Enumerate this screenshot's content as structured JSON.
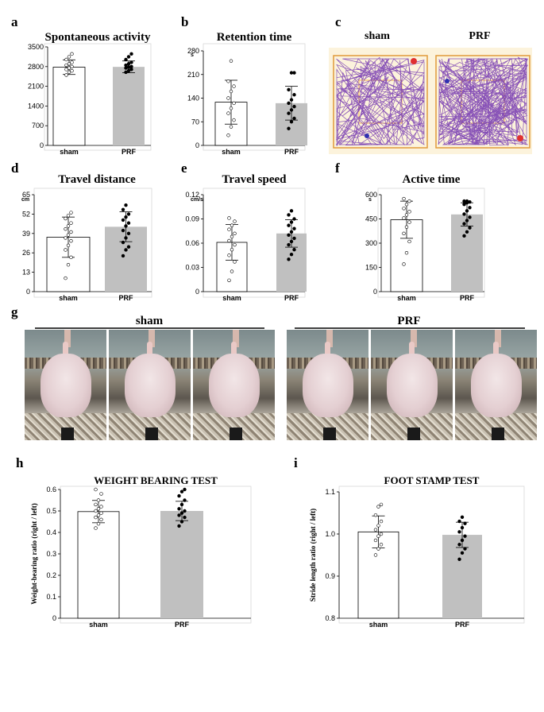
{
  "panel_letters": {
    "a": "a",
    "b": "b",
    "c": "c",
    "d": "d",
    "e": "e",
    "f": "f",
    "g": "g",
    "h": "h",
    "i": "i"
  },
  "colors": {
    "sham_fill": "#ffffff",
    "prf_fill": "#c0c0c0",
    "axis": "#000000",
    "grid_frame": "#d8d8d8",
    "track": "#7a3fb3",
    "arena_bg": "#fcf3dc",
    "arena_border": "#e09a3a"
  },
  "panel_c": {
    "sham_label": "sham",
    "prf_label": "PRF"
  },
  "panel_g": {
    "sham_label": "sham",
    "prf_label": "PRF"
  },
  "chart_data": [
    {
      "id": "a",
      "type": "bar",
      "title": "Spontaneous activity",
      "ylabel": "",
      "unit": "",
      "categories": [
        "sham",
        "PRF"
      ],
      "ylim": [
        0,
        3500
      ],
      "ticks": [
        "0",
        "700",
        "1400",
        "2100",
        "2800",
        "3500"
      ],
      "values": [
        2780,
        2790
      ],
      "errors": [
        260,
        210
      ],
      "points": [
        [
          2500,
          2600,
          2650,
          2700,
          2750,
          2800,
          2850,
          2900,
          2950,
          3050,
          3150,
          3250
        ],
        [
          2600,
          2650,
          2700,
          2750,
          2780,
          2800,
          2850,
          2900,
          2950,
          3050,
          3150,
          3250
        ]
      ]
    },
    {
      "id": "b",
      "type": "bar",
      "title": "Retention time",
      "ylabel": "",
      "unit": "s",
      "categories": [
        "sham",
        "PRF"
      ],
      "ylim": [
        0,
        280
      ],
      "ticks": [
        "0",
        "70",
        "140",
        "210",
        "280"
      ],
      "values": [
        128,
        125
      ],
      "errors": [
        65,
        50
      ],
      "points": [
        [
          30,
          55,
          75,
          95,
          110,
          125,
          140,
          160,
          175,
          190,
          250
        ],
        [
          50,
          70,
          80,
          95,
          105,
          115,
          125,
          135,
          150,
          165,
          215,
          215
        ]
      ]
    },
    {
      "id": "d",
      "type": "bar",
      "title": "Travel distance",
      "ylabel": "",
      "unit": "cm",
      "categories": [
        "sham",
        "PRF"
      ],
      "ylim": [
        0,
        65
      ],
      "ticks": [
        "0",
        "13",
        "26",
        "39",
        "52",
        "65"
      ],
      "values": [
        36.5,
        43.5
      ],
      "errors": [
        13.5,
        10
      ],
      "points": [
        [
          9,
          18,
          23,
          28,
          31,
          34,
          36,
          38,
          40,
          42,
          44,
          46,
          49,
          51,
          53
        ],
        [
          24,
          28,
          30,
          33,
          36,
          39,
          41,
          44,
          46,
          48,
          50,
          52,
          55,
          58
        ]
      ]
    },
    {
      "id": "e",
      "type": "bar",
      "title": "Travel speed",
      "ylabel": "",
      "unit": "cm/s",
      "categories": [
        "sham",
        "PRF"
      ],
      "ylim": [
        0,
        0.12
      ],
      "ticks": [
        "0",
        "0.03",
        "0.06",
        "0.09",
        "0.12"
      ],
      "values": [
        0.061,
        0.072
      ],
      "errors": [
        0.022,
        0.017
      ],
      "points": [
        [
          0.014,
          0.025,
          0.037,
          0.045,
          0.052,
          0.058,
          0.063,
          0.068,
          0.072,
          0.077,
          0.082,
          0.087,
          0.091
        ],
        [
          0.04,
          0.046,
          0.052,
          0.058,
          0.062,
          0.066,
          0.07,
          0.074,
          0.078,
          0.082,
          0.086,
          0.09,
          0.095,
          0.1
        ]
      ]
    },
    {
      "id": "f",
      "type": "bar",
      "title": "Active time",
      "ylabel": "",
      "unit": "s",
      "categories": [
        "sham",
        "PRF"
      ],
      "ylim": [
        0,
        600
      ],
      "ticks": [
        "0",
        "150",
        "300",
        "450",
        "600"
      ],
      "values": [
        445,
        478
      ],
      "errors": [
        115,
        72
      ],
      "points": [
        [
          170,
          240,
          310,
          360,
          400,
          430,
          455,
          475,
          495,
          515,
          540,
          560,
          575
        ],
        [
          345,
          370,
          395,
          420,
          440,
          460,
          480,
          500,
          520,
          540,
          550,
          555,
          560,
          560
        ]
      ]
    },
    {
      "id": "h",
      "type": "bar",
      "title": "WEIGHT BEARING TEST",
      "ylabel": "Weight-bearing ratio (right / left)",
      "unit": "",
      "categories": [
        "sham",
        "PRF"
      ],
      "ylim": [
        0,
        0.6
      ],
      "ticks": [
        "0",
        "0.1",
        "0.2",
        "0.3",
        "0.4",
        "0.5",
        "0.6"
      ],
      "values": [
        0.497,
        0.5
      ],
      "errors": [
        0.052,
        0.045
      ],
      "points": [
        [
          0.42,
          0.44,
          0.46,
          0.47,
          0.48,
          0.49,
          0.5,
          0.51,
          0.52,
          0.53,
          0.55,
          0.58,
          0.6
        ],
        [
          0.43,
          0.45,
          0.47,
          0.48,
          0.49,
          0.5,
          0.51,
          0.53,
          0.55,
          0.57,
          0.59,
          0.6
        ]
      ]
    },
    {
      "id": "i",
      "type": "bar",
      "title": "FOOT STAMP TEST",
      "ylabel": "Stride length ratio (right / left)",
      "unit": "",
      "categories": [
        "sham",
        "PRF"
      ],
      "ylim": [
        0.8,
        1.1
      ],
      "ticks": [
        "0.8",
        "0.9",
        "1.0",
        "1.1"
      ],
      "values": [
        1.005,
        0.998
      ],
      "errors": [
        0.038,
        0.03
      ],
      "points": [
        [
          0.95,
          0.965,
          0.975,
          0.985,
          0.995,
          1.0,
          1.01,
          1.02,
          1.03,
          1.045,
          1.065,
          1.07
        ],
        [
          0.94,
          0.955,
          0.965,
          0.975,
          0.985,
          0.995,
          1.005,
          1.015,
          1.025,
          1.03,
          1.04
        ]
      ]
    }
  ]
}
